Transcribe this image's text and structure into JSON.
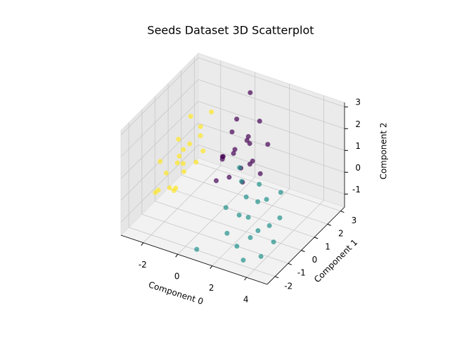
{
  "chart_data": {
    "type": "scatter3d",
    "title": "Seeds Dataset 3D Scatterplot",
    "x_label": "Component 0",
    "y_label": "Component 1",
    "z_label": "Component 2",
    "xlim": [
      -3.3,
      5.2
    ],
    "ylim": [
      -2.6,
      3.3
    ],
    "zlim": [
      -1.6,
      3.2
    ],
    "xticks": [
      -2,
      0,
      2,
      4
    ],
    "yticks": [
      -2,
      -1,
      0,
      1,
      2,
      3
    ],
    "zticks": [
      -1,
      0,
      1,
      2,
      3
    ],
    "grid": true,
    "series": [
      {
        "color": "#fde725",
        "x": [
          -2.8,
          -2.5,
          -2.2,
          -2.9,
          -2.0,
          -1.8,
          -2.6,
          -3.0,
          -2.3,
          -1.6,
          -2.7,
          -2.1,
          -1.9,
          -2.4,
          -1.5,
          -2.8,
          -2.0,
          -1.7,
          -2.5,
          -2.2
        ],
        "y": [
          0.2,
          0.8,
          1.2,
          -0.5,
          0.5,
          1.5,
          1.8,
          0.0,
          -0.2,
          0.9,
          1.0,
          1.9,
          -0.4,
          0.4,
          1.3,
          1.5,
          0.0,
          2.2,
          -0.8,
          0.7
        ],
        "z": [
          -0.3,
          0.2,
          0.6,
          -0.8,
          -0.2,
          0.9,
          1.4,
          0.3,
          -0.6,
          0.1,
          0.8,
          1.0,
          -0.5,
          -1.0,
          0.4,
          0.0,
          0.5,
          1.6,
          -0.4,
          0.0
        ]
      },
      {
        "color": "#440154",
        "x": [
          0.2,
          0.6,
          -0.3,
          1.0,
          0.4,
          -0.5,
          0.8,
          1.3,
          0.0,
          0.5,
          1.5,
          -0.2,
          0.9,
          0.3,
          1.1,
          -0.6,
          0.7,
          0.1,
          1.6,
          -0.1
        ],
        "y": [
          1.5,
          2.0,
          1.2,
          1.8,
          0.8,
          2.2,
          2.6,
          1.2,
          1.9,
          1.0,
          2.3,
          0.6,
          1.5,
          2.5,
          0.9,
          1.6,
          1.3,
          2.8,
          1.6,
          1.0
        ],
        "z": [
          0.8,
          1.2,
          0.4,
          0.3,
          0.0,
          1.0,
          1.6,
          0.6,
          1.9,
          1.0,
          0.9,
          -0.2,
          1.4,
          0.5,
          -0.1,
          0.2,
          0.2,
          2.6,
          0.0,
          0.7
        ]
      },
      {
        "color": "#21918c",
        "x": [
          2.5,
          3.0,
          2.0,
          3.5,
          1.8,
          2.8,
          4.0,
          1.5,
          3.2,
          2.2,
          3.8,
          1.2,
          2.6,
          3.4,
          4.2,
          1.0,
          2.9,
          0.8,
          3.6,
          2.3
        ],
        "y": [
          -0.5,
          -1.0,
          0.0,
          -0.2,
          -1.2,
          0.5,
          -1.5,
          0.3,
          -1.8,
          -0.8,
          0.2,
          -0.5,
          -1.5,
          0.8,
          -0.8,
          0.8,
          -0.3,
          -2.2,
          -1.2,
          0.6
        ],
        "z": [
          -0.5,
          -1.0,
          0.0,
          -0.8,
          -1.0,
          -0.2,
          -1.3,
          0.4,
          -1.5,
          -0.3,
          -0.6,
          -0.4,
          -1.2,
          0.1,
          -1.0,
          0.6,
          0.2,
          -1.4,
          -0.4,
          0.3
        ]
      }
    ]
  }
}
